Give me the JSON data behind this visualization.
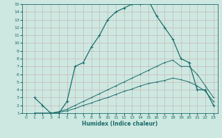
{
  "xlabel": "Humidex (Indice chaleur)",
  "bg_color": "#cde8e0",
  "line_color": "#1a6b6b",
  "grid_color": "#b0d8cc",
  "xlim": [
    -0.5,
    23.5
  ],
  "ylim": [
    1,
    15
  ],
  "xticks": [
    0,
    1,
    2,
    3,
    4,
    5,
    6,
    7,
    8,
    9,
    10,
    11,
    12,
    13,
    14,
    15,
    16,
    17,
    18,
    19,
    20,
    21,
    22,
    23
  ],
  "yticks": [
    1,
    2,
    3,
    4,
    5,
    6,
    7,
    8,
    9,
    10,
    11,
    12,
    13,
    14,
    15
  ],
  "line1_x": [
    1,
    2,
    3,
    4,
    5,
    6,
    7,
    8,
    9,
    10,
    11,
    12,
    13,
    14,
    15,
    16,
    17,
    18,
    19,
    20,
    21,
    22,
    23
  ],
  "line1_y": [
    3,
    2,
    1,
    1,
    2.5,
    7,
    7.5,
    9.5,
    11,
    13,
    14,
    14.5,
    15,
    15,
    15.5,
    13.5,
    12,
    10.5,
    8,
    7.5,
    4,
    4,
    2
  ],
  "line2_x": [
    1,
    3,
    4,
    5,
    6,
    7,
    8,
    9,
    10,
    11,
    12,
    13,
    14,
    15,
    16,
    17,
    18,
    19,
    20,
    21,
    22,
    23
  ],
  "line2_y": [
    1,
    1,
    1.2,
    1.5,
    2,
    2.5,
    3,
    3.5,
    4,
    4.5,
    5,
    5.5,
    6,
    6.5,
    7,
    7.5,
    7.8,
    7,
    7,
    6,
    4.5,
    3
  ],
  "line3_x": [
    1,
    3,
    4,
    5,
    6,
    7,
    8,
    9,
    10,
    11,
    12,
    13,
    14,
    15,
    16,
    17,
    18,
    19,
    20,
    21,
    22,
    23
  ],
  "line3_y": [
    1,
    1,
    1.1,
    1.3,
    1.6,
    2,
    2.3,
    2.7,
    3,
    3.4,
    3.8,
    4.1,
    4.5,
    4.8,
    5.0,
    5.2,
    5.5,
    5.3,
    5,
    4.5,
    3.8,
    2.5
  ]
}
